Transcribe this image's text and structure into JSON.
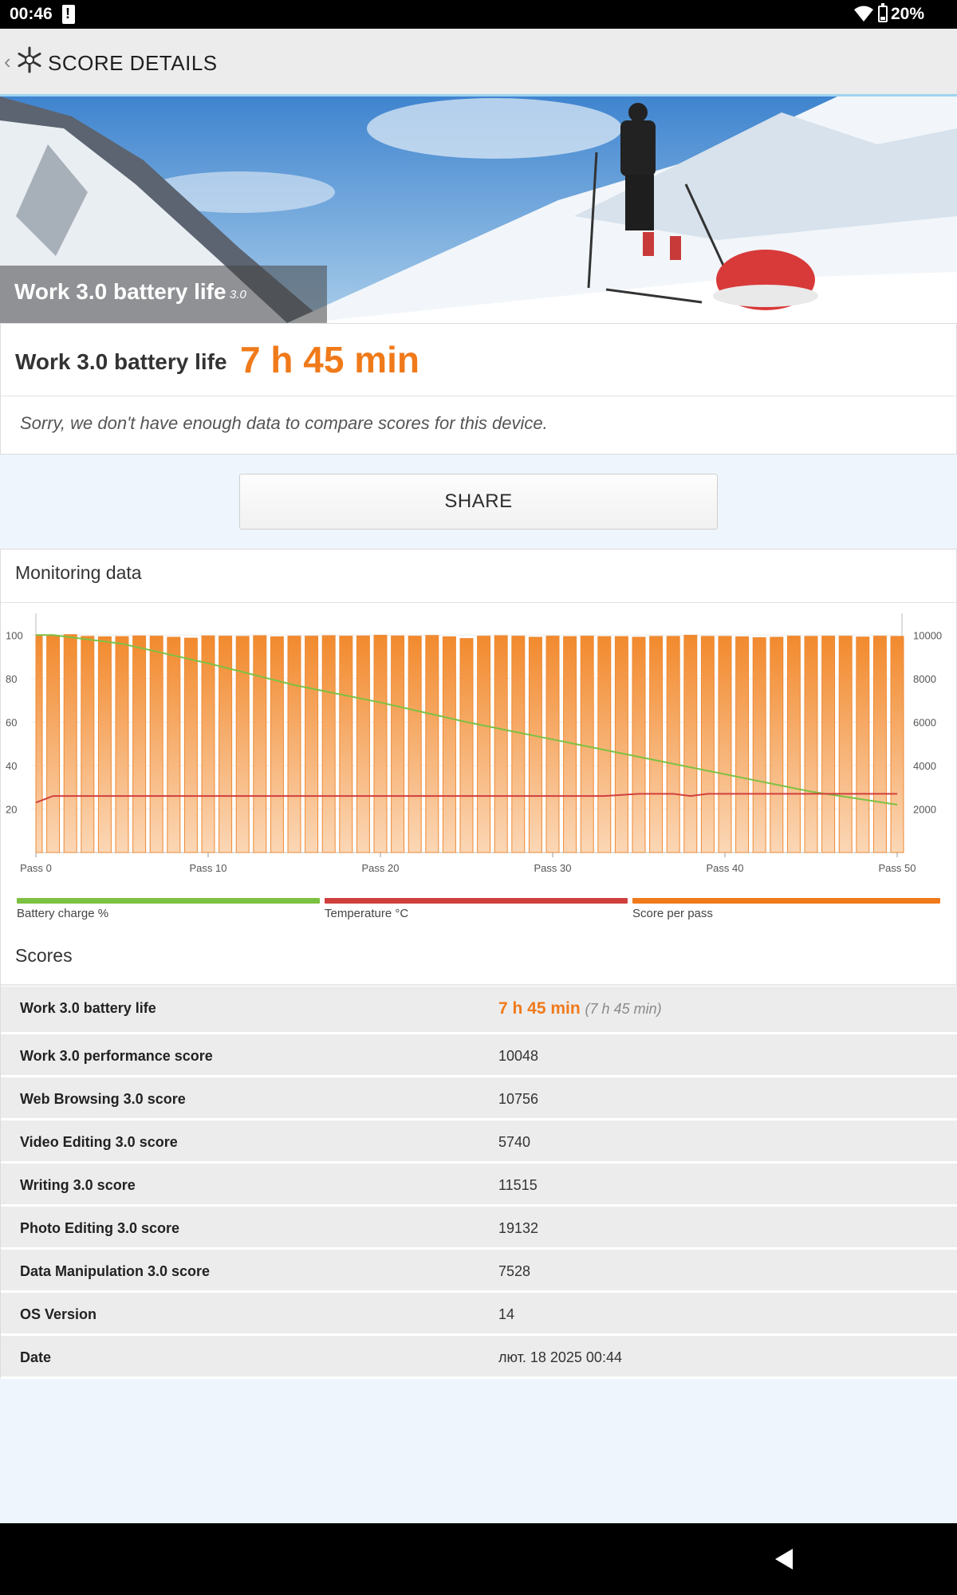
{
  "status_bar": {
    "time": "00:46",
    "battery_percent": "20%"
  },
  "app_bar": {
    "title": "SCORE DETAILS"
  },
  "hero": {
    "label": "Work 3.0 battery life",
    "version": "3.0"
  },
  "result": {
    "name": "Work 3.0 battery life",
    "value": "7 h 45 min",
    "note": "Sorry, we don't have enough data to compare scores for this device."
  },
  "share_label": "SHARE",
  "monitoring": {
    "title": "Monitoring data",
    "legend": [
      {
        "label": "Battery charge %",
        "color": "#7cc142"
      },
      {
        "label": "Temperature °C",
        "color": "#d13f3f"
      },
      {
        "label": "Score per pass",
        "color": "#f07a1a"
      }
    ]
  },
  "chart_data": {
    "type": "bar",
    "x_tick_labels": [
      "Pass 0",
      "Pass 10",
      "Pass 20",
      "Pass 30",
      "Pass 40",
      "Pass 50"
    ],
    "left_axis": {
      "ticks": [
        20,
        40,
        60,
        80,
        100
      ],
      "ylim": [
        0,
        110
      ]
    },
    "right_axis": {
      "ticks": [
        2000,
        4000,
        6000,
        8000,
        10000
      ],
      "ylim": [
        0,
        11000
      ]
    },
    "series": [
      {
        "name": "Score per pass",
        "axis": "right",
        "kind": "bar",
        "color": "#f07a1a",
        "values": [
          9980,
          9970,
          10020,
          9940,
          9920,
          9930,
          9960,
          9950,
          9900,
          9860,
          9960,
          9950,
          9940,
          9970,
          9920,
          9950,
          9950,
          9970,
          9950,
          9960,
          9990,
          9960,
          9950,
          9980,
          9920,
          9840,
          9950,
          9970,
          9950,
          9900,
          9950,
          9930,
          9950,
          9930,
          9930,
          9900,
          9940,
          9940,
          9990,
          9940,
          9940,
          9920,
          9880,
          9900,
          9950,
          9940,
          9950,
          9950,
          9910,
          9950,
          9940
        ]
      },
      {
        "name": "Battery charge %",
        "axis": "left",
        "kind": "line",
        "color": "#7cc142",
        "x": [
          0,
          1,
          2,
          5,
          10,
          15,
          20,
          25,
          30,
          35,
          40,
          45,
          50
        ],
        "values": [
          100,
          100,
          99,
          96,
          87,
          77,
          69,
          60,
          52,
          44,
          36,
          28,
          22
        ]
      },
      {
        "name": "Temperature °C",
        "axis": "left",
        "kind": "line",
        "color": "#d13f3f",
        "x": [
          0,
          1,
          33,
          35,
          37,
          38,
          39,
          50
        ],
        "values": [
          23,
          26,
          26,
          27,
          27,
          26,
          27,
          27
        ]
      }
    ]
  },
  "scores": {
    "title": "Scores",
    "primary": {
      "label": "Work 3.0 battery life",
      "value": "7 h 45 min",
      "sub": "(7 h 45 min)"
    },
    "rows": [
      {
        "label": "Work 3.0 performance score",
        "value": "10048"
      },
      {
        "label": "Web Browsing 3.0 score",
        "value": "10756"
      },
      {
        "label": "Video Editing 3.0 score",
        "value": "5740"
      },
      {
        "label": "Writing 3.0 score",
        "value": "11515"
      },
      {
        "label": "Photo Editing 3.0 score",
        "value": "19132"
      },
      {
        "label": "Data Manipulation 3.0 score",
        "value": "7528"
      },
      {
        "label": "OS Version",
        "value": "14"
      },
      {
        "label": "Date",
        "value": "лют. 18 2025 00:44"
      }
    ]
  }
}
